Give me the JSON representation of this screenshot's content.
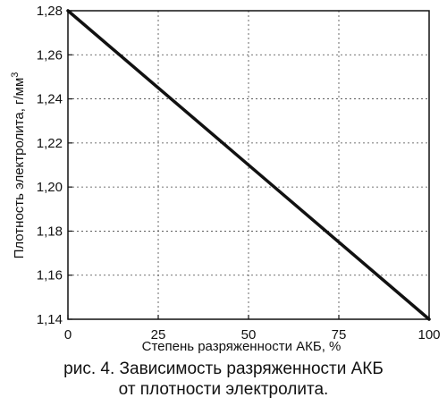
{
  "chart_data": {
    "type": "line",
    "xlabel": "Степень разряженности АКБ, %",
    "ylabel": "Плотность электролита, г/мм",
    "ylabel_superscript": "3",
    "xlim": [
      0,
      100
    ],
    "ylim": [
      1.14,
      1.28
    ],
    "x_ticks": [
      0,
      25,
      50,
      75,
      100
    ],
    "x_tick_labels": [
      "0",
      "25",
      "50",
      "75",
      "100"
    ],
    "y_ticks": [
      1.14,
      1.16,
      1.18,
      1.2,
      1.22,
      1.24,
      1.26,
      1.28
    ],
    "y_tick_labels": [
      "1,14",
      "1,16",
      "1,18",
      "1,20",
      "1,22",
      "1,24",
      "1,26",
      "1,28"
    ],
    "grid": true,
    "series": [
      {
        "x": [
          0,
          100
        ],
        "y": [
          1.28,
          1.14
        ],
        "color": "#111111"
      }
    ]
  },
  "caption": {
    "line1": "рис. 4.  Зависимость разряженности АКБ",
    "line2": "от плотности электролита."
  }
}
